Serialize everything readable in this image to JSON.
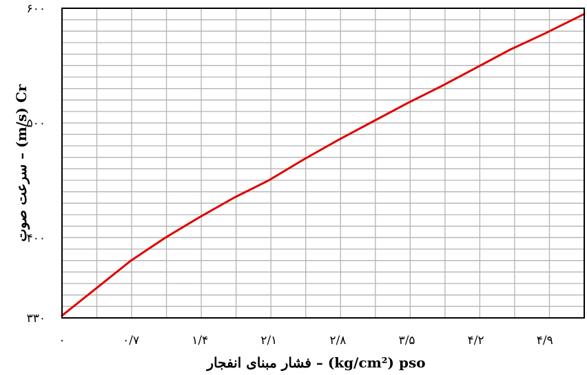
{
  "chart_data": {
    "type": "line",
    "xlabel": "فشار مبنای انفجار – (kg/cm²) pso",
    "ylabel": "سرعت صوت – (m/s) Cr",
    "xlim": [
      0,
      5.3
    ],
    "ylim": [
      330,
      600
    ],
    "x_ticks": [
      0,
      0.7,
      1.4,
      2.1,
      2.8,
      3.5,
      4.2,
      4.9
    ],
    "x_tick_labels": [
      "۰",
      "۰/۷",
      "۱/۴",
      "۲/۱",
      "۲/۸",
      "۳/۵",
      "۴/۲",
      "۴/۹"
    ],
    "y_ticks": [
      330,
      400,
      500,
      600
    ],
    "y_tick_labels": [
      "۳۳۰",
      "۴۰۰",
      "۵۰۰",
      "۶۰۰"
    ],
    "grid": true,
    "series": [
      {
        "color": "#e00000",
        "x": [
          0,
          0.35,
          0.7,
          1.05,
          1.4,
          1.75,
          2.1,
          2.45,
          2.8,
          3.15,
          3.5,
          3.85,
          4.2,
          4.55,
          4.9,
          5.3
        ],
        "y": [
          332,
          356,
          380,
          400,
          418,
          435,
          450,
          468,
          485,
          501,
          517,
          532,
          548,
          564,
          578,
          595
        ]
      }
    ]
  }
}
